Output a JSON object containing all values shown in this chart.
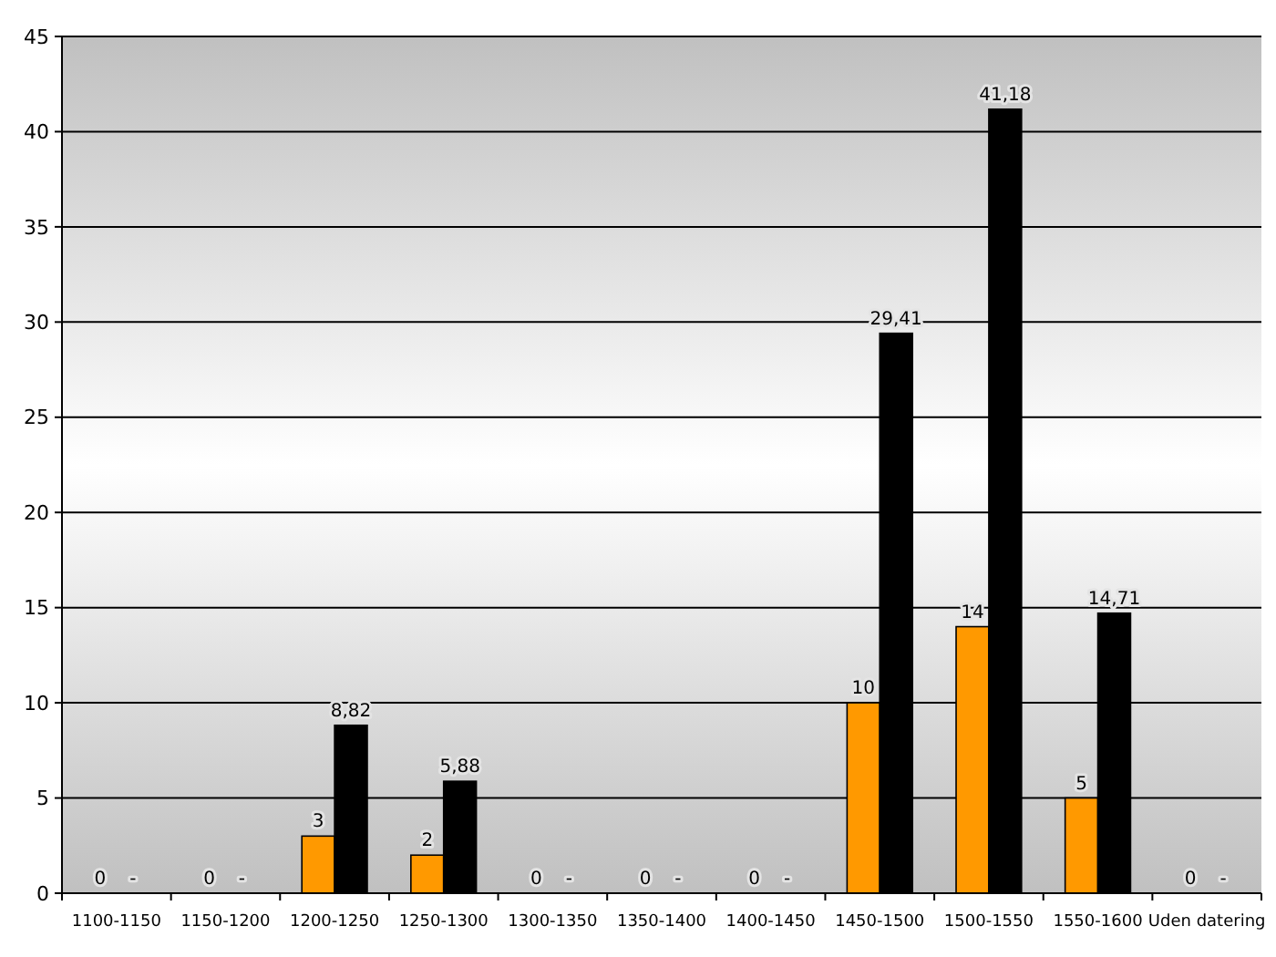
{
  "chart_data": {
    "type": "bar",
    "categories": [
      "1100-1150",
      "1150-1200",
      "1200-1250",
      "1250-1300",
      "1300-1350",
      "1350-1400",
      "1400-1450",
      "1450-1500",
      "1500-1550",
      "1550-1600",
      "Uden datering"
    ],
    "series": [
      {
        "color": "#ff9900",
        "values": [
          0,
          0,
          3,
          2,
          0,
          0,
          0,
          10,
          14,
          5,
          0
        ],
        "value_labels": [
          "0",
          "0",
          "3",
          "2",
          "0",
          "0",
          "0",
          "10",
          "14",
          "5",
          "0"
        ]
      },
      {
        "color": "#000000",
        "values": [
          0,
          0,
          8.82,
          5.88,
          0,
          0,
          0,
          29.41,
          41.18,
          14.71,
          0
        ],
        "value_labels": [
          "-",
          "-",
          "8,82",
          "5,88",
          "-",
          "-",
          "-",
          "29,41",
          "41,18",
          "14,71",
          "-"
        ]
      }
    ],
    "ylim": [
      0,
      45
    ],
    "yticks": [
      0,
      5,
      10,
      15,
      20,
      25,
      30,
      35,
      40,
      45
    ],
    "grid": "y"
  }
}
